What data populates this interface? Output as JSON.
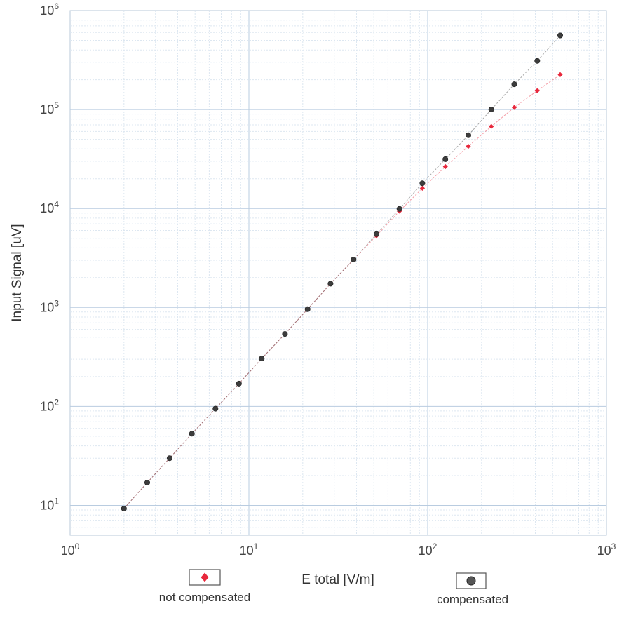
{
  "chart_data": {
    "type": "scatter",
    "title": "",
    "xlabel": "E total [V/m]",
    "ylabel": "Input Signal [uV]",
    "xscale": "log",
    "yscale": "log",
    "xlim": [
      1,
      1000
    ],
    "ylim": [
      5,
      1000000
    ],
    "grid": true,
    "legend_position": "bottom",
    "x_ticks": [
      {
        "base": "10",
        "exp": "0",
        "value": 1
      },
      {
        "base": "10",
        "exp": "1",
        "value": 10
      },
      {
        "base": "10",
        "exp": "2",
        "value": 100
      },
      {
        "base": "10",
        "exp": "3",
        "value": 1000
      }
    ],
    "y_ticks": [
      {
        "base": "10",
        "exp": "1",
        "value": 10
      },
      {
        "base": "10",
        "exp": "2",
        "value": 100
      },
      {
        "base": "10",
        "exp": "3",
        "value": 1000
      },
      {
        "base": "10",
        "exp": "4",
        "value": 10000
      },
      {
        "base": "10",
        "exp": "5",
        "value": 100000
      },
      {
        "base": "10",
        "exp": "6",
        "value": 1000000
      }
    ],
    "series": [
      {
        "name": "not compensated",
        "marker": "diamond",
        "color": "#e8283c",
        "x": [
          2.0,
          2.7,
          3.6,
          4.8,
          6.5,
          8.8,
          11.8,
          15.9,
          21.3,
          28.6,
          38.5,
          51.7,
          69.5,
          93.4,
          125.6,
          168.8,
          226.9,
          305.0,
          410.0,
          551.0
        ],
        "y": [
          9.3,
          17,
          30,
          53,
          95,
          170,
          305,
          540,
          960,
          1740,
          3050,
          5300,
          9400,
          16000,
          26500,
          42500,
          67500,
          105000,
          155000,
          225000
        ]
      },
      {
        "name": "compensated",
        "marker": "circle",
        "color": "#3c3c3c",
        "x": [
          2.0,
          2.7,
          3.6,
          4.8,
          6.5,
          8.8,
          11.8,
          15.9,
          21.3,
          28.6,
          38.5,
          51.7,
          69.5,
          93.4,
          125.6,
          168.8,
          226.9,
          305.0,
          410.0,
          551.0
        ],
        "y": [
          9.3,
          17,
          30,
          53,
          95,
          170,
          305,
          540,
          960,
          1740,
          3050,
          5500,
          9900,
          18000,
          31500,
          55000,
          100000,
          180000,
          310000,
          560000
        ]
      }
    ]
  }
}
